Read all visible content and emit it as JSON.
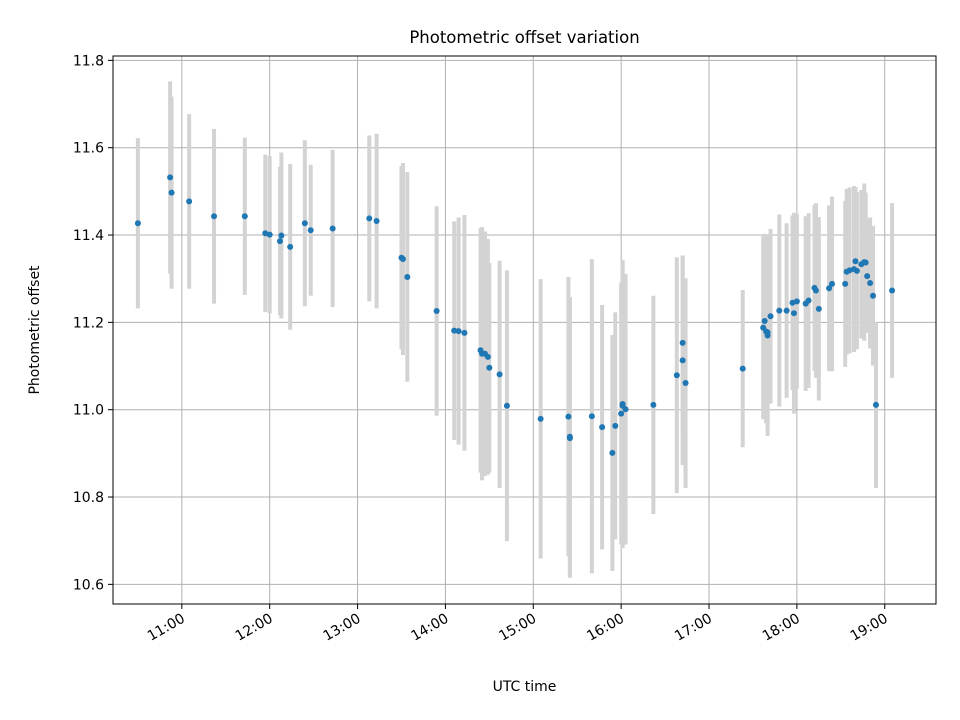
{
  "chart_data": {
    "type": "scatter",
    "title": "Photometric offset variation",
    "xlabel": "UTC time",
    "ylabel": "Photometric offset",
    "xlim": [
      "10:13",
      "19:35"
    ],
    "ylim": [
      10.555,
      11.81
    ],
    "x_ticks": [
      "11:00",
      "12:00",
      "13:00",
      "14:00",
      "15:00",
      "16:00",
      "17:00",
      "18:00",
      "19:00"
    ],
    "y_ticks": [
      "10.6",
      "10.8",
      "11.0",
      "11.2",
      "11.4",
      "11.6",
      "11.8"
    ],
    "grid": true,
    "point_color": "#1f77b4",
    "errorbar_color": "#d3d3d3",
    "series": [
      {
        "x": [
          "10:30",
          "10:52",
          "10:53",
          "11:05",
          "11:22",
          "11:43",
          "11:57",
          "12:00",
          "12:07",
          "12:08",
          "12:14",
          "12:24",
          "12:28",
          "12:43",
          "13:08",
          "13:13",
          "13:30",
          "13:31",
          "13:34",
          "13:54",
          "14:06",
          "14:09",
          "14:13",
          "14:24",
          "14:25",
          "14:27",
          "14:29",
          "14:30",
          "14:37",
          "14:42",
          "15:05",
          "15:24",
          "15:25",
          "15:25",
          "15:40",
          "15:47",
          "15:54",
          "15:56",
          "16:00",
          "16:01",
          "16:01",
          "16:03",
          "16:22",
          "16:38",
          "16:42",
          "16:42",
          "16:44",
          "17:23",
          "17:37",
          "17:38",
          "17:39",
          "17:40",
          "17:40",
          "17:42",
          "17:48",
          "17:53",
          "17:57",
          "17:58",
          "18:00",
          "18:06",
          "18:08",
          "18:12",
          "18:13",
          "18:15",
          "18:22",
          "18:24",
          "18:33",
          "18:34",
          "18:36",
          "18:39",
          "18:40",
          "18:41",
          "18:44",
          "18:46",
          "18:47",
          "18:48",
          "18:50",
          "18:52",
          "18:54",
          "19:05"
        ],
        "y": [
          11.427,
          11.532,
          11.497,
          11.477,
          11.443,
          11.443,
          11.404,
          11.401,
          11.386,
          11.399,
          11.373,
          11.427,
          11.411,
          11.415,
          11.438,
          11.432,
          11.348,
          11.345,
          11.304,
          11.226,
          11.181,
          11.18,
          11.176,
          11.136,
          11.128,
          11.128,
          11.121,
          11.096,
          11.081,
          11.009,
          10.979,
          10.984,
          10.935,
          10.938,
          10.985,
          10.96,
          10.901,
          10.963,
          10.991,
          11.013,
          11.009,
          11.001,
          11.011,
          11.079,
          11.153,
          11.113,
          11.061,
          11.094,
          11.188,
          11.203,
          11.179,
          11.17,
          11.177,
          11.214,
          11.227,
          11.227,
          11.245,
          11.221,
          11.248,
          11.243,
          11.25,
          11.279,
          11.273,
          11.231,
          11.278,
          11.288,
          11.288,
          11.316,
          11.319,
          11.322,
          11.34,
          11.318,
          11.333,
          11.338,
          11.337,
          11.306,
          11.29,
          11.261,
          11.011,
          11.273
        ],
        "yerr": [
          0.195,
          0.22,
          0.22,
          0.2,
          0.2,
          0.18,
          0.18,
          0.18,
          0.17,
          0.19,
          0.19,
          0.19,
          0.15,
          0.18,
          0.19,
          0.2,
          0.21,
          0.22,
          0.24,
          0.24,
          0.25,
          0.26,
          0.27,
          0.28,
          0.29,
          0.28,
          0.27,
          0.24,
          0.26,
          0.31,
          0.32,
          0.32,
          0.32,
          0.32,
          0.36,
          0.28,
          0.27,
          0.26,
          0.3,
          0.33,
          0.32,
          0.31,
          0.25,
          0.27,
          0.2,
          0.24,
          0.24,
          0.18,
          0.21,
          0.2,
          0.21,
          0.23,
          0.22,
          0.2,
          0.22,
          0.2,
          0.2,
          0.23,
          0.2,
          0.2,
          0.2,
          0.19,
          0.2,
          0.21,
          0.19,
          0.2,
          0.19,
          0.19,
          0.19,
          0.19,
          0.17,
          0.18,
          0.17,
          0.18,
          0.16,
          0.13,
          0.15,
          0.16,
          0.19,
          0.2
        ]
      }
    ]
  }
}
